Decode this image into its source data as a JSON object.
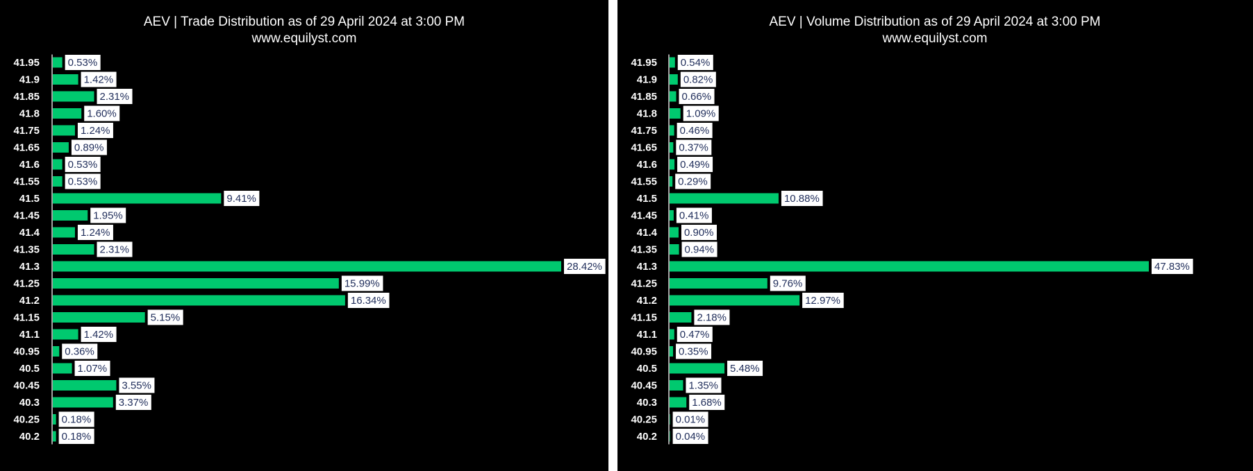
{
  "colors": {
    "background": "#000000",
    "bar": "#00c96f",
    "label_box": "#ffffff",
    "label_text": "#1f2d5a",
    "text": "#ffffff"
  },
  "chart_data": [
    {
      "type": "bar",
      "orientation": "horizontal",
      "title": "AEV | Trade Distribution as of 29 April 2024 at 3:00 PM",
      "subtitle": "www.equilyst.com",
      "xlabel": "",
      "ylabel": "",
      "categories": [
        "41.95",
        "41.9",
        "41.85",
        "41.8",
        "41.75",
        "41.65",
        "41.6",
        "41.55",
        "41.5",
        "41.45",
        "41.4",
        "41.35",
        "41.3",
        "41.25",
        "41.2",
        "41.15",
        "41.1",
        "40.95",
        "40.5",
        "40.45",
        "40.3",
        "40.25",
        "40.2"
      ],
      "values": [
        0.53,
        1.42,
        2.31,
        1.6,
        1.24,
        0.89,
        0.53,
        0.53,
        9.41,
        1.95,
        1.24,
        2.31,
        28.42,
        15.99,
        16.34,
        5.15,
        1.42,
        0.36,
        1.07,
        3.55,
        3.37,
        0.18,
        0.18
      ],
      "data_labels": [
        "0.53%",
        "1.42%",
        "2.31%",
        "1.60%",
        "1.24%",
        "0.89%",
        "0.53%",
        "0.53%",
        "9.41%",
        "1.95%",
        "1.24%",
        "2.31%",
        "28.42%",
        "15.99%",
        "16.34%",
        "5.15%",
        "1.42%",
        "0.36%",
        "1.07%",
        "3.55%",
        "3.37%",
        "0.18%",
        "0.18%"
      ],
      "xlim": [
        0,
        28.42
      ],
      "grid": false,
      "legend": "none"
    },
    {
      "type": "bar",
      "orientation": "horizontal",
      "title": "AEV | Volume Distribution as of 29 April 2024 at 3:00 PM",
      "subtitle": "www.equilyst.com",
      "xlabel": "",
      "ylabel": "",
      "categories": [
        "41.95",
        "41.9",
        "41.85",
        "41.8",
        "41.75",
        "41.65",
        "41.6",
        "41.55",
        "41.5",
        "41.45",
        "41.4",
        "41.35",
        "41.3",
        "41.25",
        "41.2",
        "41.15",
        "41.1",
        "40.95",
        "40.5",
        "40.45",
        "40.3",
        "40.25",
        "40.2"
      ],
      "values": [
        0.54,
        0.82,
        0.66,
        1.09,
        0.46,
        0.37,
        0.49,
        0.29,
        10.88,
        0.41,
        0.9,
        0.94,
        47.83,
        9.76,
        12.97,
        2.18,
        0.47,
        0.35,
        5.48,
        1.35,
        1.68,
        0.01,
        0.04
      ],
      "data_labels": [
        "0.54%",
        "0.82%",
        "0.66%",
        "1.09%",
        "0.46%",
        "0.37%",
        "0.49%",
        "0.29%",
        "10.88%",
        "0.41%",
        "0.90%",
        "0.94%",
        "47.83%",
        "9.76%",
        "12.97%",
        "2.18%",
        "0.47%",
        "0.35%",
        "5.48%",
        "1.35%",
        "1.68%",
        "0.01%",
        "0.04%"
      ],
      "xlim": [
        0,
        47.83
      ],
      "grid": false,
      "legend": "none"
    }
  ]
}
